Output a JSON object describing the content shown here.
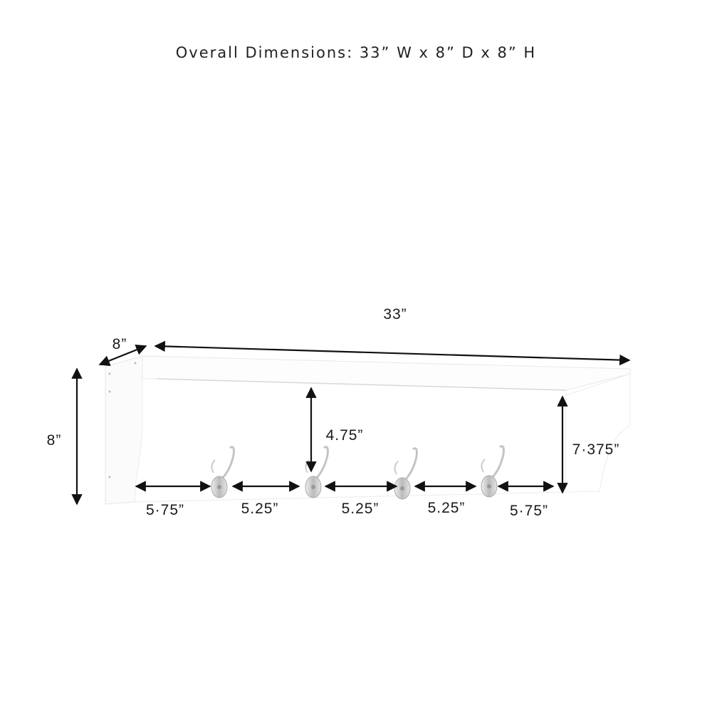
{
  "title": "Overall Dimensions: 33” W x 8” D x 8” H",
  "dimensions": {
    "width": "33”",
    "depth": "8”",
    "height": "8”",
    "hook_drop": "4.75”",
    "inner_height": "7·375”",
    "spacing": [
      "5·75”",
      "5.25”",
      "5.25”",
      "5.25”",
      "5·75”"
    ]
  },
  "colors": {
    "shelf": "#ffffff",
    "outline": "#e2e2e2",
    "arrow": "#111111",
    "hook": "#c8c8c8"
  }
}
